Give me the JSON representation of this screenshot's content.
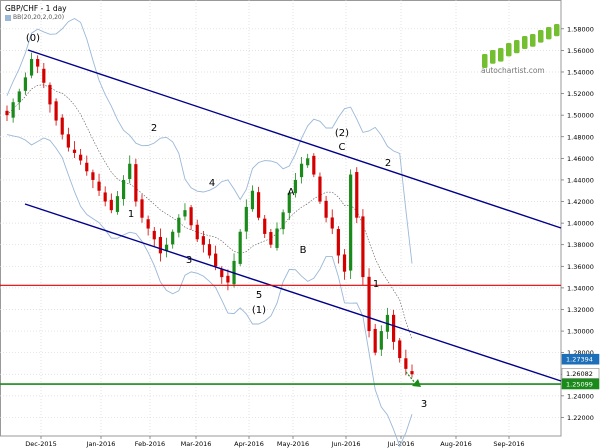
{
  "header": {
    "title": "GBP/CHF - 1 day",
    "indicator": "BB(20,20,2,0,20)"
  },
  "logo": {
    "text": "autochartist.com",
    "colors": [
      "#73bf2f",
      "#3a8a1f"
    ]
  },
  "chart_data": {
    "type": "candlestick",
    "title": "GBP/CHF - 1 day",
    "x_tick_labels": [
      "Dec-2015",
      "Jan-2016",
      "Feb-2016",
      "Mar-2016",
      "Apr-2016",
      "May-2016",
      "Jun-2016",
      "Jul-2016",
      "Aug-2016",
      "Sep-2016"
    ],
    "y_tick_labels": [
      "1.58000",
      "1.56000",
      "1.54000",
      "1.52000",
      "1.50000",
      "1.48000",
      "1.46000",
      "1.44000",
      "1.42000",
      "1.40000",
      "1.38000",
      "1.36000",
      "1.34000",
      "1.32000",
      "1.30000",
      "1.28000",
      "1.26000",
      "1.24000",
      "1.22000"
    ],
    "ylim": [
      1.213,
      1.59
    ],
    "grid": true,
    "price_labels": [
      {
        "text": "1.27394",
        "value": 1.27394,
        "color": "#1d6fb8"
      },
      {
        "text": "1.26082",
        "value": 1.26082,
        "color": "#ffffff"
      },
      {
        "text": "1.25099",
        "value": 1.25099,
        "color": "#1a8a1a"
      }
    ],
    "close_series_approx": [
      1.5,
      1.512,
      1.522,
      1.535,
      1.552,
      1.545,
      1.53,
      1.51,
      1.495,
      1.482,
      1.47,
      1.465,
      1.458,
      1.448,
      1.44,
      1.43,
      1.42,
      1.412,
      1.425,
      1.44,
      1.455,
      1.42,
      1.405,
      1.395,
      1.385,
      1.372,
      1.38,
      1.392,
      1.405,
      1.412,
      1.398,
      1.385,
      1.38,
      1.37,
      1.36,
      1.35,
      1.345,
      1.365,
      1.392,
      1.415,
      1.43,
      1.405,
      1.39,
      1.38,
      1.395,
      1.41,
      1.428,
      1.44,
      1.455,
      1.46,
      1.445,
      1.42,
      1.405,
      1.395,
      1.37,
      1.355,
      1.445,
      1.405,
      1.35,
      1.3,
      1.28,
      1.3,
      1.315,
      1.29,
      1.275,
      1.265,
      1.26
    ],
    "wave_labels": [
      "(0)",
      "1",
      "2",
      "3",
      "4",
      "5",
      "(1)",
      "A",
      "B",
      "C",
      "(2)",
      "1",
      "2",
      "3"
    ],
    "lines": {
      "channel_upper_color": "#00008b",
      "channel_lower_color": "#00008b",
      "resistance_level": 1.3424,
      "resistance_color": "#e00000",
      "support_level": 1.2509,
      "support_color": "#1a8a1a"
    },
    "colors": {
      "bull_candle": "#1a8a1a",
      "bear_candle": "#d40000",
      "bollinger": "#9bb8d8",
      "arrow": "#1a8a1a"
    }
  }
}
